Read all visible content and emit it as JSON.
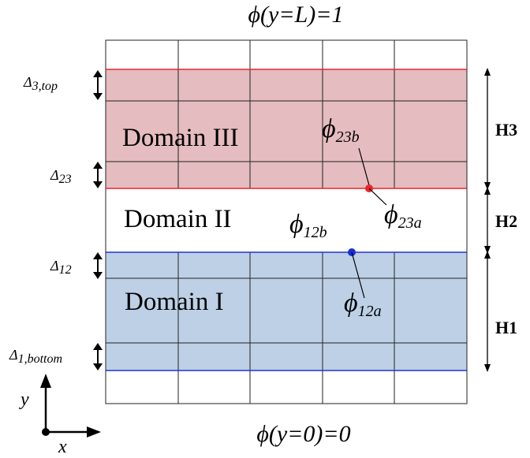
{
  "boundary": {
    "top": {
      "symbol": "ϕ",
      "rest": "(y=L)=1"
    },
    "bottom": {
      "symbol": "ϕ",
      "rest": "(y=0)=0"
    }
  },
  "domains": {
    "d3": {
      "label": "Domain III",
      "color": "#e5bcbf",
      "line_color": "#e8262b"
    },
    "d2": {
      "label": "Domain II"
    },
    "d1": {
      "label": "Domain I",
      "color": "#bdd0e6",
      "line_color": "#2432d4"
    }
  },
  "points": {
    "p23b": {
      "symbol": "ϕ",
      "sub": "23b"
    },
    "p23a": {
      "symbol": "ϕ",
      "sub": "23a"
    },
    "p12b": {
      "symbol": "ϕ",
      "sub": "12b"
    },
    "p12a": {
      "symbol": "ϕ",
      "sub": "12a"
    },
    "red_dot": "#e8262b",
    "blue_dot": "#1a2fd6"
  },
  "deltas": {
    "d3top": {
      "symbol": "Δ",
      "sub": "3,top"
    },
    "d23": {
      "symbol": "Δ",
      "sub": "23"
    },
    "d12": {
      "symbol": "Δ",
      "sub": "12"
    },
    "d1bottom": {
      "symbol": "Δ",
      "sub": "1,bottom"
    }
  },
  "heights": {
    "h3": "H3",
    "h2": "H2",
    "h1": "H1"
  },
  "axes": {
    "y": "y",
    "x": "x"
  }
}
